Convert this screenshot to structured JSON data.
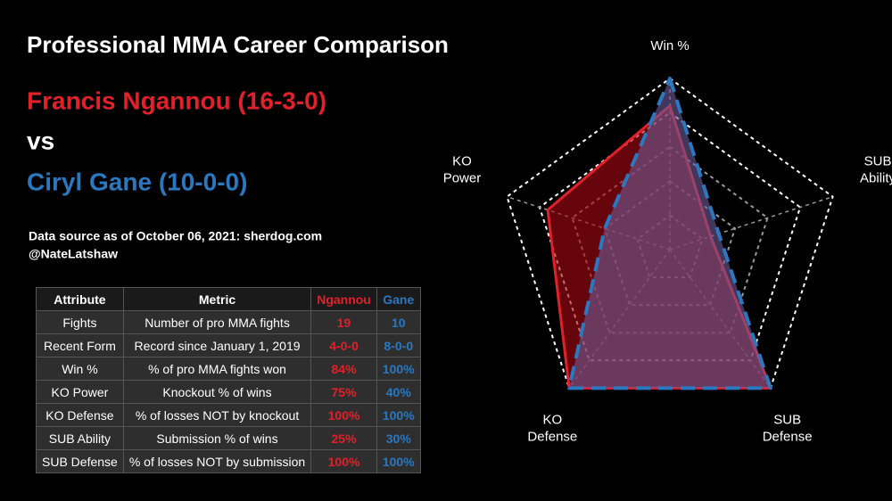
{
  "header": {
    "title": "Professional MMA Career Comparison",
    "fighter1": "Francis Ngannou (16-3-0)",
    "vs": "vs",
    "fighter2": "Ciryl Gane (10-0-0)",
    "source": "Data source as of October 06, 2021: sherdog.com",
    "author": "@NateLatshaw"
  },
  "table": {
    "columns": [
      "Attribute",
      "Metric",
      "Ngannou",
      "Gane"
    ],
    "rows": [
      [
        "Fights",
        "Number of pro MMA fights",
        "19",
        "10"
      ],
      [
        "Recent Form",
        "Record since January 1, 2019",
        "4-0-0",
        "8-0-0"
      ],
      [
        "Win %",
        "% of pro MMA fights won",
        "84%",
        "100%"
      ],
      [
        "KO Power",
        "Knockout % of wins",
        "75%",
        "40%"
      ],
      [
        "KO Defense",
        "% of losses NOT by knockout",
        "100%",
        "100%"
      ],
      [
        "SUB Ability",
        "Submission % of wins",
        "25%",
        "30%"
      ],
      [
        "SUB Defense",
        "% of losses NOT by submission",
        "100%",
        "100%"
      ]
    ]
  },
  "chart_data": {
    "type": "radar",
    "categories": [
      "Win %",
      "SUB\nAbility",
      "SUB\nDefense",
      "KO\nDefense",
      "KO\nPower"
    ],
    "rlim": [
      0,
      100
    ],
    "grid": true,
    "series": [
      {
        "name": "Ngannou",
        "color": "#e0202a",
        "fill": "rgba(170,10,20,0.6)",
        "values": [
          84,
          25,
          100,
          100,
          75
        ]
      },
      {
        "name": "Gane",
        "color": "#2a78c0",
        "fill": "rgba(110,90,150,0.6)",
        "dashed": true,
        "values": [
          100,
          30,
          100,
          100,
          40
        ]
      }
    ]
  }
}
